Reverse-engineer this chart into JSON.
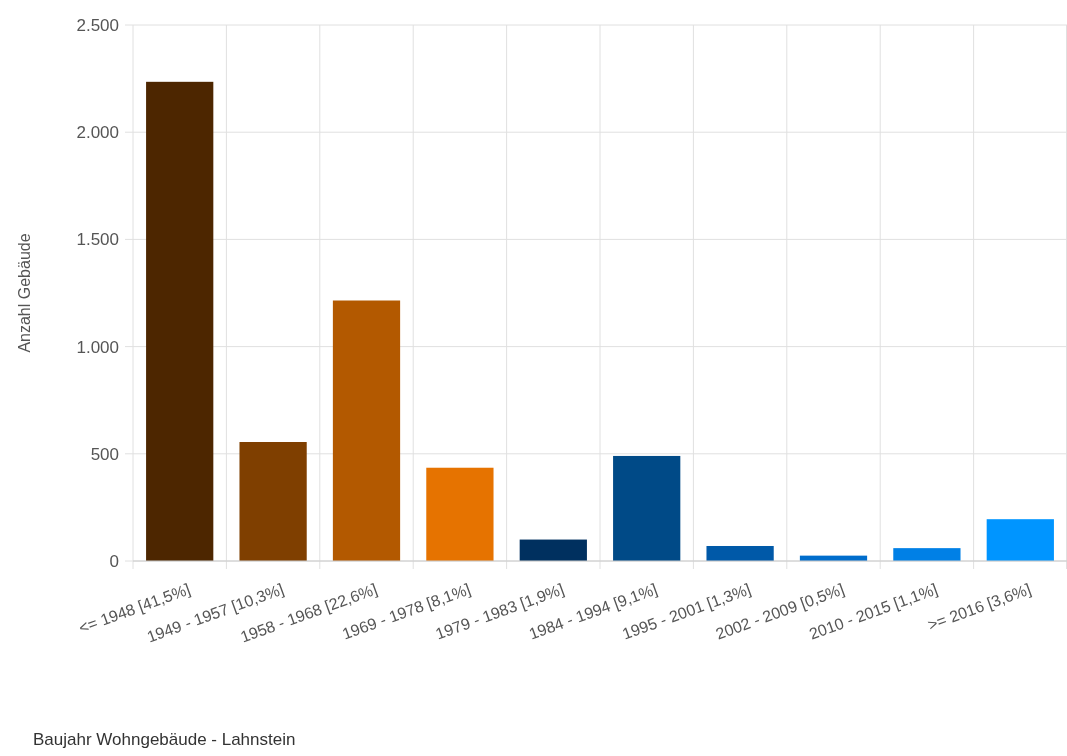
{
  "chart_data": {
    "type": "bar",
    "title": "Baujahr Wohngebäude - Lahnstein",
    "ylabel": "Anzahl Gebäude",
    "categories": [
      "<= 1948 [41,5%]",
      "1949 - 1957 [10,3%]",
      "1958 - 1968 [22,6%]",
      "1969 - 1978 [8,1%]",
      "1979 - 1983 [1,9%]",
      "1984 - 1994 [9,1%]",
      "1995 - 2001 [1,3%]",
      "2002 - 2009 [0,5%]",
      "2010 - 2015 [1,1%]",
      ">= 2016 [3,6%]"
    ],
    "values": [
      2235,
      555,
      1215,
      435,
      100,
      490,
      70,
      25,
      60,
      195
    ],
    "colors": [
      "#4d2600",
      "#7f3f00",
      "#b35900",
      "#e67300",
      "#00305f",
      "#004a87",
      "#0059a8",
      "#006dcc",
      "#0080e6",
      "#0095ff"
    ],
    "ylim": [
      0,
      2500
    ],
    "yticks": [
      0,
      {
        "value": 500,
        "label": "500"
      },
      {
        "value": 1000,
        "label": "1.000"
      },
      {
        "value": 1500,
        "label": "1.500"
      },
      {
        "value": 2000,
        "label": "2.000"
      },
      {
        "value": 2500,
        "label": "2.500"
      }
    ],
    "grid": true
  }
}
